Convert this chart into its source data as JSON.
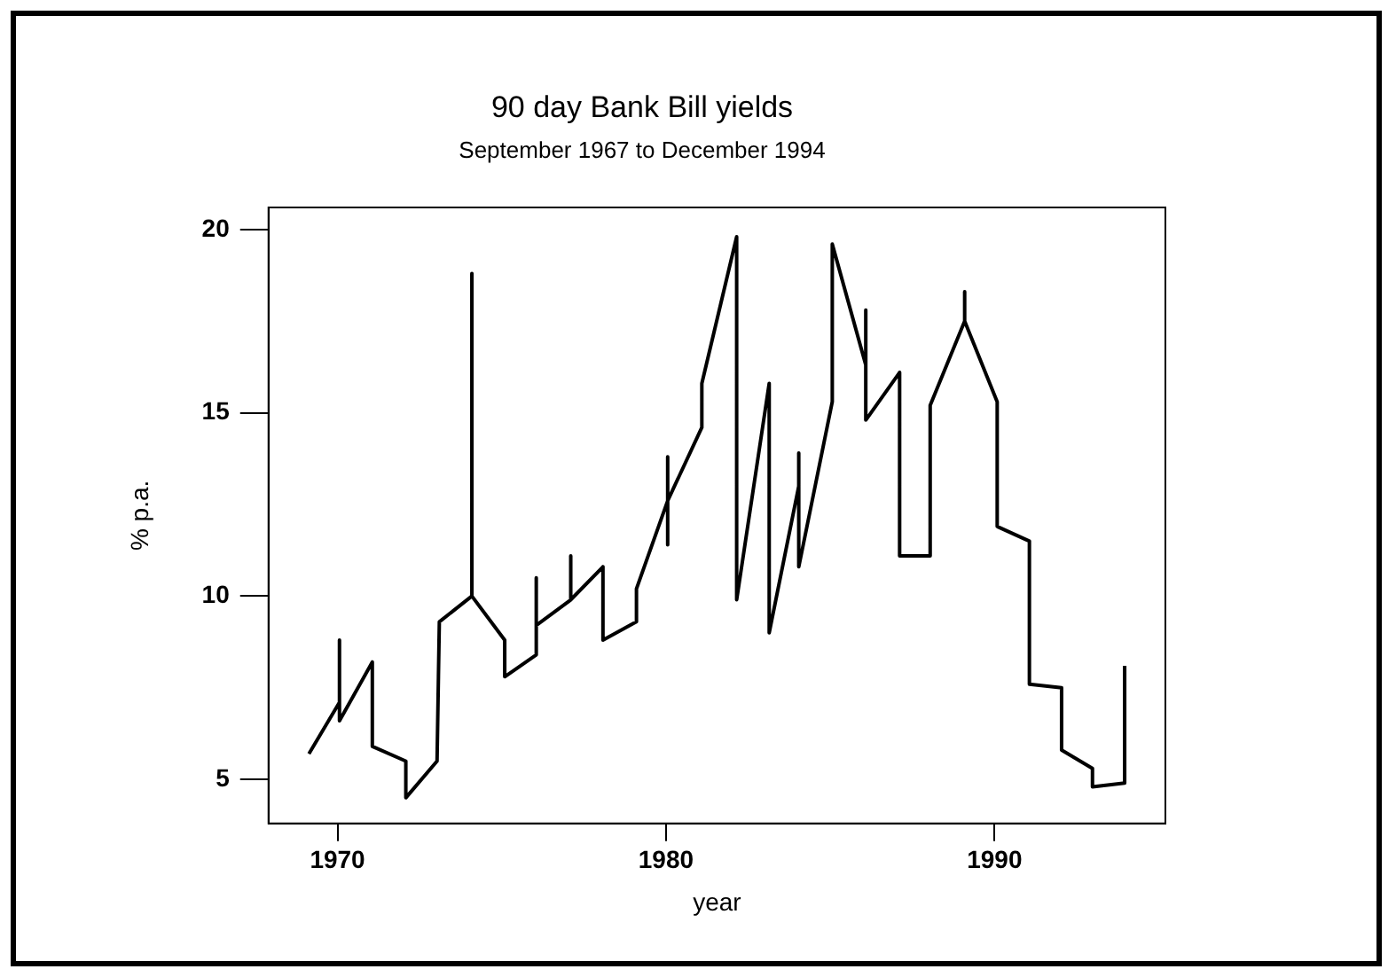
{
  "chart_data": {
    "type": "line",
    "title": "90 day Bank Bill yields",
    "subtitle": "September 1967 to December 1994",
    "xlabel": "year",
    "ylabel": "% p.a.",
    "x": [
      1969.13,
      1970.06,
      1970.06,
      1970.06,
      1971.06,
      1971.06,
      1972.08,
      1972.08,
      1973.03,
      1973.1,
      1974.09,
      1974.09,
      1974.09,
      1975.09,
      1975.09,
      1976.05,
      1976.05,
      1976.05,
      1977.1,
      1977.1,
      1977.1,
      1978.08,
      1978.08,
      1979.1,
      1979.1,
      1980.05,
      1980.05,
      1980.05,
      1980.05,
      1981.09,
      1981.09,
      1982.15,
      1982.15,
      1983.14,
      1983.14,
      1984.04,
      1984.04,
      1984.04,
      1985.06,
      1985.06,
      1986.08,
      1986.08,
      1986.08,
      1987.11,
      1987.11,
      1988.04,
      1988.04,
      1989.09,
      1989.09,
      1989.09,
      1990.08,
      1990.08,
      1991.06,
      1991.06,
      1992.04,
      1992.04,
      1992.98,
      1992.98,
      1993.96,
      1993.96
    ],
    "values": [
      5.7,
      7.1,
      8.8,
      6.6,
      8.2,
      5.9,
      5.5,
      4.5,
      5.5,
      9.3,
      10.0,
      18.8,
      10.0,
      8.8,
      7.8,
      8.4,
      10.5,
      9.2,
      9.9,
      11.1,
      9.9,
      10.8,
      8.8,
      9.3,
      10.2,
      12.6,
      13.8,
      11.4,
      12.6,
      14.6,
      15.8,
      19.8,
      9.9,
      15.8,
      9.0,
      13.0,
      13.9,
      10.8,
      15.3,
      19.6,
      16.3,
      17.8,
      14.8,
      16.1,
      11.1,
      11.1,
      15.2,
      17.5,
      18.3,
      17.5,
      15.3,
      11.9,
      11.5,
      7.6,
      7.5,
      5.8,
      5.3,
      4.8,
      4.9,
      8.1
    ],
    "color": "#000000",
    "xlim": [
      1967.9,
      1995.2
    ],
    "ylim": [
      3.8,
      20.6
    ],
    "xticks": [
      1970,
      1980,
      1990
    ],
    "yticks": [
      5,
      10,
      15,
      20
    ],
    "grid": false,
    "legend": false,
    "marker": "none",
    "line_style": "solid"
  }
}
